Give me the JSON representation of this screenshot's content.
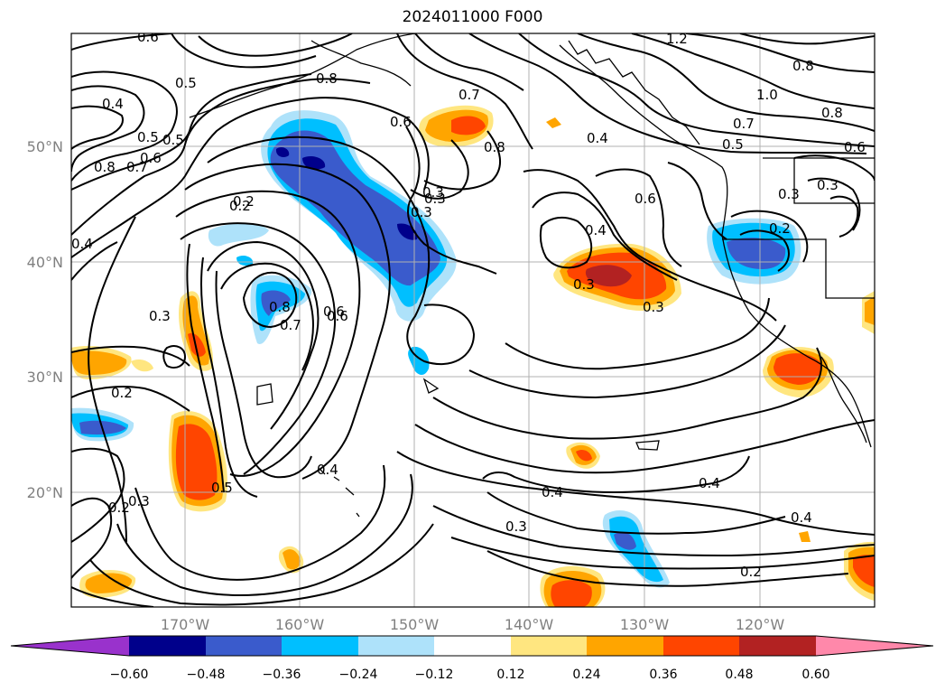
{
  "title": "2024011000 F000",
  "map": {
    "lon_ticks": [
      "170°W",
      "160°W",
      "150°W",
      "140°W",
      "130°W",
      "120°W"
    ],
    "lat_ticks": [
      "50°N",
      "40°N",
      "30°N",
      "20°N"
    ],
    "contour_labels": [
      "0.6",
      "0.4",
      "0.5",
      "0.5",
      "0.8",
      "0.7",
      "0.6",
      "0.5",
      "0.8",
      "0.6",
      "0.2",
      "0.3",
      "0.4",
      "0.3",
      "0.2",
      "0.8",
      "0.7",
      "0.6",
      "0.4",
      "0.3",
      "0.2",
      "0.5",
      "0.4",
      "0.3",
      "0.2",
      "0.4",
      "0.7",
      "0.8",
      "0.4",
      "0.6",
      "0.3",
      "0.3",
      "0.3",
      "0.3",
      "0.2",
      "0.4",
      "0.4",
      "0.3",
      "0.2",
      "1.0",
      "0.8",
      "0.6",
      "0.5",
      "0.7",
      "0.8",
      "1.2",
      "0.3",
      "0.6"
    ]
  },
  "colorbar": {
    "ticks": [
      "−0.60",
      "−0.48",
      "−0.36",
      "−0.24",
      "−0.12",
      "0.12",
      "0.24",
      "0.36",
      "0.48",
      "0.60"
    ],
    "colors": [
      "#9932cc",
      "#00008b",
      "#3a5bcc",
      "#00bfff",
      "#aee2fa",
      "#ffffff",
      "#ffe680",
      "#ffa500",
      "#ff4500",
      "#b22222",
      "#ff88aa"
    ]
  }
}
